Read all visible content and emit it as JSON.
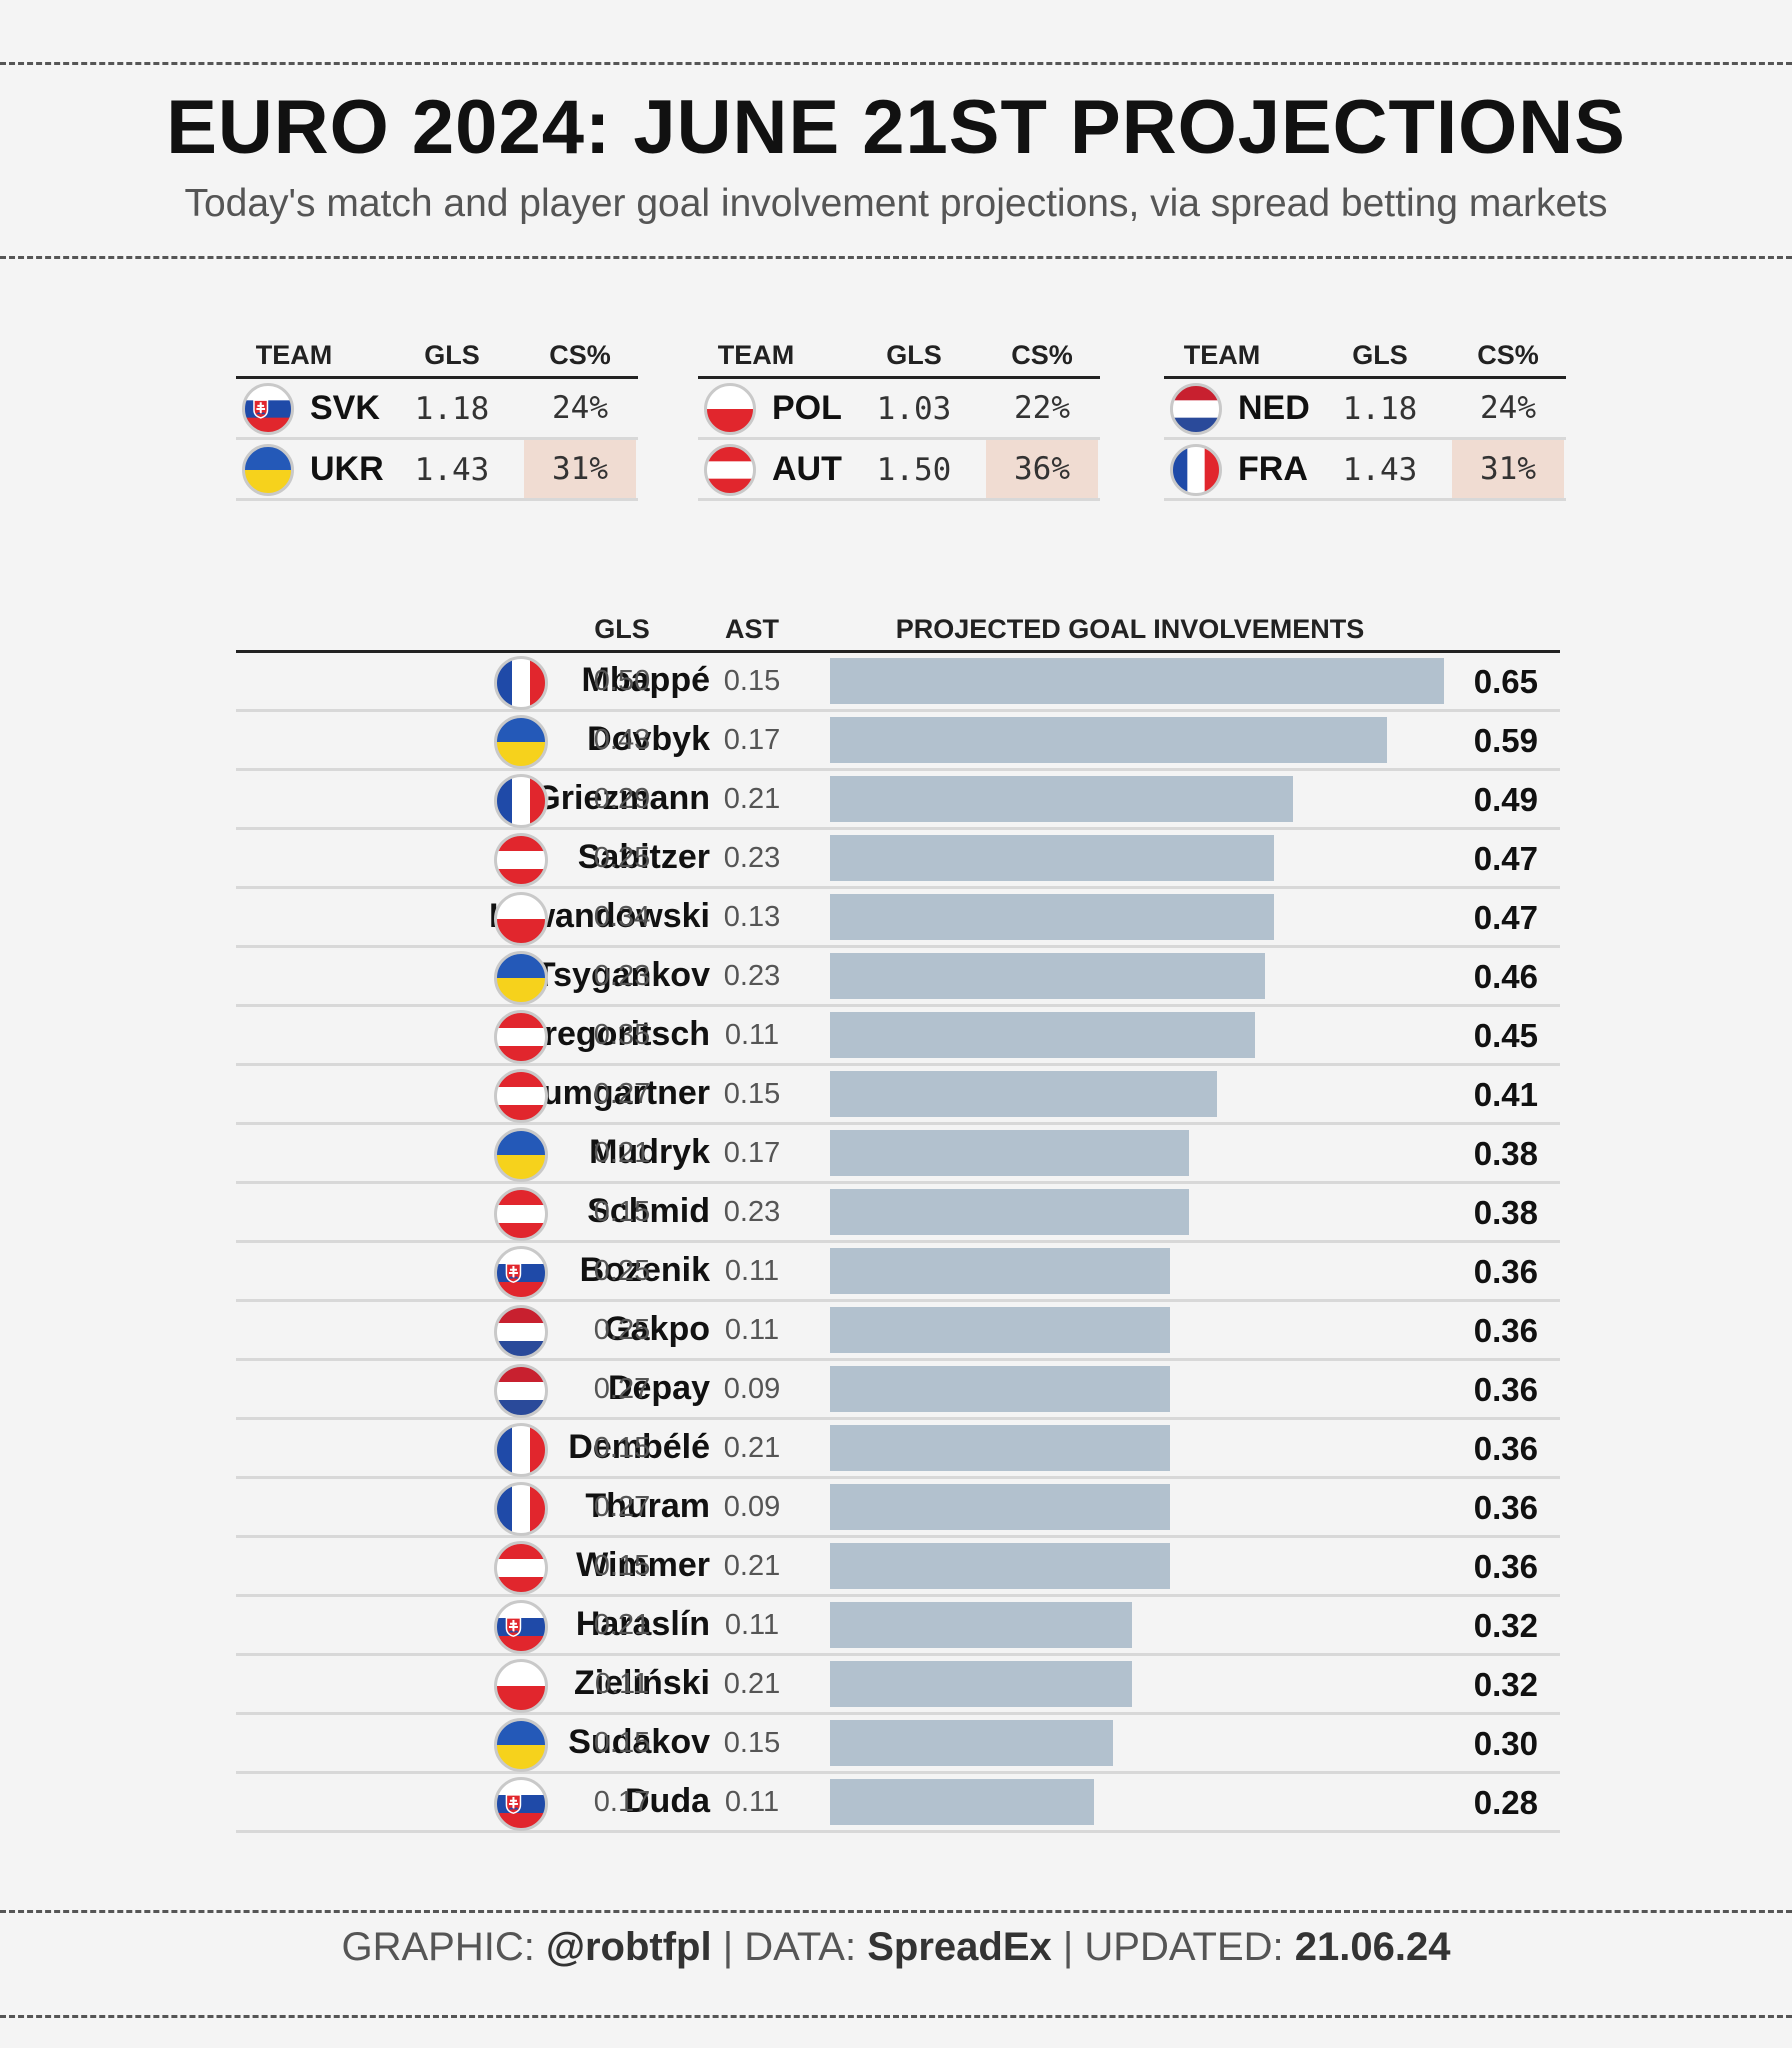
{
  "title": "EURO 2024: JUNE 21ST PROJECTIONS",
  "subtitle": "Today's match and player goal involvement projections, via spread betting markets",
  "colors": {
    "bar": "#b2c1ce",
    "highlight": "#f0dcd2"
  },
  "match_headers": {
    "team": "TEAM",
    "gls": "GLS",
    "cs": "CS%"
  },
  "matches": [
    {
      "teams": [
        {
          "code": "SVK",
          "flag": "slovakia-flag",
          "gls": "1.18",
          "cs": "24%",
          "highlight": false
        },
        {
          "code": "UKR",
          "flag": "ukraine-flag",
          "gls": "1.43",
          "cs": "31%",
          "highlight": true
        }
      ]
    },
    {
      "teams": [
        {
          "code": "POL",
          "flag": "poland-flag",
          "gls": "1.03",
          "cs": "22%",
          "highlight": false
        },
        {
          "code": "AUT",
          "flag": "austria-flag",
          "gls": "1.50",
          "cs": "36%",
          "highlight": true
        }
      ]
    },
    {
      "teams": [
        {
          "code": "NED",
          "flag": "netherlands-flag",
          "gls": "1.18",
          "cs": "24%",
          "highlight": false
        },
        {
          "code": "FRA",
          "flag": "france-flag",
          "gls": "1.43",
          "cs": "31%",
          "highlight": true
        }
      ]
    }
  ],
  "player_headers": {
    "gls": "GLS",
    "ast": "AST",
    "gi": "PROJECTED GOAL INVOLVEMENTS"
  },
  "chart_data": {
    "type": "bar",
    "orientation": "horizontal",
    "xlim": [
      0,
      0.65
    ],
    "categories": [
      "Mbappé",
      "Dovbyk",
      "Griezmann",
      "Sabitzer",
      "Lewandowski",
      "Tsygankov",
      "Gregoritsch",
      "Baumgartner",
      "Mudryk",
      "Schmid",
      "Bozenik",
      "Gakpo",
      "Depay",
      "Dembélé",
      "Thuram",
      "Wimmer",
      "Haraslín",
      "Zieliński",
      "Sudakov",
      "Duda"
    ],
    "values": [
      0.65,
      0.59,
      0.49,
      0.47,
      0.47,
      0.46,
      0.45,
      0.41,
      0.38,
      0.38,
      0.36,
      0.36,
      0.36,
      0.36,
      0.36,
      0.36,
      0.32,
      0.32,
      0.3,
      0.28
    ],
    "rows": [
      {
        "name": "Mbappé",
        "flag": "france-flag",
        "gls": "0.50",
        "ast": "0.15",
        "gi": "0.65"
      },
      {
        "name": "Dovbyk",
        "flag": "ukraine-flag",
        "gls": "0.43",
        "ast": "0.17",
        "gi": "0.59"
      },
      {
        "name": "Griezmann",
        "flag": "france-flag",
        "gls": "0.29",
        "ast": "0.21",
        "gi": "0.49"
      },
      {
        "name": "Sabitzer",
        "flag": "austria-flag",
        "gls": "0.25",
        "ast": "0.23",
        "gi": "0.47"
      },
      {
        "name": "Lewandowski",
        "flag": "poland-flag",
        "gls": "0.34",
        "ast": "0.13",
        "gi": "0.47"
      },
      {
        "name": "Tsygankov",
        "flag": "ukraine-flag",
        "gls": "0.23",
        "ast": "0.23",
        "gi": "0.46"
      },
      {
        "name": "Gregoritsch",
        "flag": "austria-flag",
        "gls": "0.35",
        "ast": "0.11",
        "gi": "0.45"
      },
      {
        "name": "Baumgartner",
        "flag": "austria-flag",
        "gls": "0.27",
        "ast": "0.15",
        "gi": "0.41"
      },
      {
        "name": "Mudryk",
        "flag": "ukraine-flag",
        "gls": "0.21",
        "ast": "0.17",
        "gi": "0.38"
      },
      {
        "name": "Schmid",
        "flag": "austria-flag",
        "gls": "0.15",
        "ast": "0.23",
        "gi": "0.38"
      },
      {
        "name": "Bozenik",
        "flag": "slovakia-flag",
        "gls": "0.25",
        "ast": "0.11",
        "gi": "0.36"
      },
      {
        "name": "Gakpo",
        "flag": "netherlands-flag",
        "gls": "0.25",
        "ast": "0.11",
        "gi": "0.36"
      },
      {
        "name": "Depay",
        "flag": "netherlands-flag",
        "gls": "0.27",
        "ast": "0.09",
        "gi": "0.36"
      },
      {
        "name": "Dembélé",
        "flag": "france-flag",
        "gls": "0.15",
        "ast": "0.21",
        "gi": "0.36"
      },
      {
        "name": "Thuram",
        "flag": "france-flag",
        "gls": "0.27",
        "ast": "0.09",
        "gi": "0.36"
      },
      {
        "name": "Wimmer",
        "flag": "austria-flag",
        "gls": "0.15",
        "ast": "0.21",
        "gi": "0.36"
      },
      {
        "name": "Haraslín",
        "flag": "slovakia-flag",
        "gls": "0.21",
        "ast": "0.11",
        "gi": "0.32"
      },
      {
        "name": "Zieliński",
        "flag": "poland-flag",
        "gls": "0.11",
        "ast": "0.21",
        "gi": "0.32"
      },
      {
        "name": "Sudakov",
        "flag": "ukraine-flag",
        "gls": "0.15",
        "ast": "0.15",
        "gi": "0.30"
      },
      {
        "name": "Duda",
        "flag": "slovakia-flag",
        "gls": "0.17",
        "ast": "0.11",
        "gi": "0.28"
      }
    ]
  },
  "footer": {
    "graphic_label": "GRAPHIC:",
    "graphic_value": "@robtfpl",
    "data_label": "DATA:",
    "data_value": "SpreadEx",
    "updated_label": "UPDATED:",
    "updated_value": "21.06.24",
    "separator": "|"
  }
}
